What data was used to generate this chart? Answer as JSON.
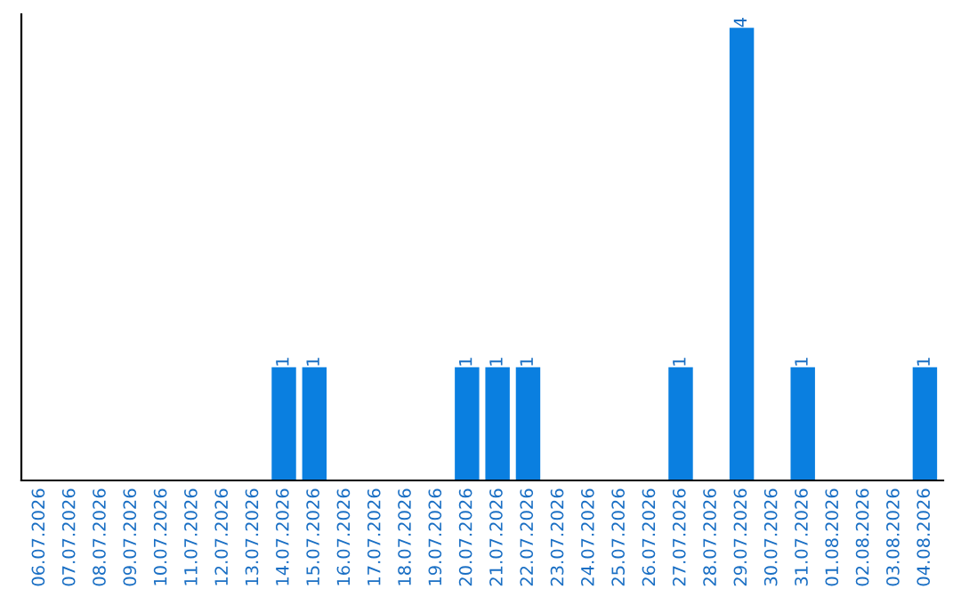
{
  "chart_data": {
    "type": "bar",
    "categories": [
      "06.07.2026",
      "07.07.2026",
      "08.07.2026",
      "09.07.2026",
      "10.07.2026",
      "11.07.2026",
      "12.07.2026",
      "13.07.2026",
      "14.07.2026",
      "15.07.2026",
      "16.07.2026",
      "17.07.2026",
      "18.07.2026",
      "19.07.2026",
      "20.07.2026",
      "21.07.2026",
      "22.07.2026",
      "23.07.2026",
      "24.07.2026",
      "25.07.2026",
      "26.07.2026",
      "27.07.2026",
      "28.07.2026",
      "29.07.2026",
      "30.07.2026",
      "31.07.2026",
      "01.08.2026",
      "02.08.2026",
      "03.08.2026",
      "04.08.2026"
    ],
    "values": [
      0,
      0,
      0,
      0,
      0,
      0,
      0,
      0,
      1,
      1,
      0,
      0,
      0,
      0,
      1,
      1,
      1,
      0,
      0,
      0,
      0,
      1,
      0,
      4,
      0,
      1,
      0,
      0,
      0,
      1
    ],
    "value_labels": [
      null,
      null,
      null,
      null,
      null,
      null,
      null,
      null,
      "1",
      "1",
      null,
      null,
      null,
      null,
      "1",
      "1",
      "1",
      null,
      null,
      null,
      null,
      "1",
      null,
      "4",
      null,
      "1",
      null,
      null,
      null,
      "1"
    ],
    "color": "#0a7fe0",
    "grid": false,
    "legend": false
  }
}
